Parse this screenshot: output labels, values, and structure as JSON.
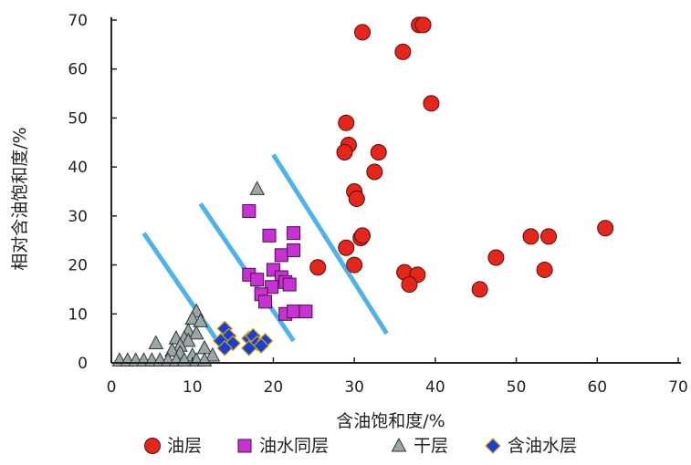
{
  "chart_data": {
    "type": "scatter",
    "xlabel": "含油饱和度/%",
    "ylabel": "相对含油饱和度/%",
    "xlim": [
      0,
      70
    ],
    "ylim": [
      0,
      70
    ],
    "xticks": [
      "0",
      "10",
      "20",
      "30",
      "40",
      "50",
      "60",
      "70"
    ],
    "yticks": [
      "0",
      "10",
      "20",
      "30",
      "40",
      "50",
      "60",
      "70"
    ],
    "grid": false,
    "legend_position": "bottom",
    "series": [
      {
        "name": "油层",
        "marker": "circle",
        "color": "#e5261c",
        "points": [
          [
            38.0,
            69.0
          ],
          [
            38.5,
            69.0
          ],
          [
            31.0,
            67.5
          ],
          [
            36.0,
            63.5
          ],
          [
            39.5,
            53.0
          ],
          [
            29.0,
            49.0
          ],
          [
            29.3,
            44.5
          ],
          [
            33.0,
            43.0
          ],
          [
            28.8,
            43.0
          ],
          [
            32.5,
            39.0
          ],
          [
            30.0,
            35.0
          ],
          [
            30.3,
            33.5
          ],
          [
            30.8,
            25.5
          ],
          [
            31.0,
            26.0
          ],
          [
            29.0,
            23.5
          ],
          [
            25.5,
            19.5
          ],
          [
            30.0,
            20.0
          ],
          [
            36.2,
            18.5
          ],
          [
            37.8,
            18.0
          ],
          [
            36.8,
            16.0
          ],
          [
            45.5,
            15.0
          ],
          [
            47.5,
            21.5
          ],
          [
            51.8,
            25.8
          ],
          [
            54.0,
            25.8
          ],
          [
            53.5,
            19.0
          ],
          [
            61.0,
            27.5
          ]
        ]
      },
      {
        "name": "油水同层",
        "marker": "square",
        "color": "#c832d2",
        "points": [
          [
            17.0,
            31.0
          ],
          [
            22.5,
            26.5
          ],
          [
            19.5,
            26.0
          ],
          [
            21.0,
            22.0
          ],
          [
            22.5,
            23.0
          ],
          [
            17.0,
            18.0
          ],
          [
            18.0,
            17.0
          ],
          [
            20.0,
            19.0
          ],
          [
            21.0,
            17.5
          ],
          [
            21.5,
            16.5
          ],
          [
            22.0,
            16.0
          ],
          [
            19.8,
            15.5
          ],
          [
            18.5,
            14.0
          ],
          [
            19.0,
            12.5
          ],
          [
            21.5,
            10.0
          ],
          [
            22.5,
            10.5
          ],
          [
            24.0,
            10.5
          ]
        ]
      },
      {
        "name": "干层",
        "marker": "triangle",
        "color": "#9aa7a8",
        "points": [
          [
            18.0,
            35.5
          ],
          [
            10.5,
            10.5
          ],
          [
            10.0,
            9.0
          ],
          [
            11.0,
            8.5
          ],
          [
            9.5,
            6.5
          ],
          [
            10.5,
            6.0
          ],
          [
            9.0,
            5.0
          ],
          [
            8.0,
            5.0
          ],
          [
            9.5,
            4.5
          ],
          [
            5.5,
            4.0
          ],
          [
            8.5,
            3.5
          ],
          [
            11.5,
            3.0
          ],
          [
            7.5,
            2.5
          ],
          [
            8.5,
            2.0
          ],
          [
            10.0,
            1.5
          ],
          [
            12.5,
            1.5
          ],
          [
            1.0,
            0.5
          ],
          [
            2.0,
            0.5
          ],
          [
            3.0,
            0.5
          ],
          [
            4.0,
            0.5
          ],
          [
            5.0,
            0.5
          ],
          [
            6.0,
            0.5
          ],
          [
            7.0,
            0.5
          ],
          [
            8.0,
            0.5
          ],
          [
            9.0,
            0.5
          ],
          [
            10.5,
            0.5
          ],
          [
            11.5,
            0.5
          ]
        ]
      },
      {
        "name": "含油水层",
        "marker": "diamond",
        "color": "#1d3fd0",
        "points": [
          [
            14.0,
            7.0
          ],
          [
            14.5,
            5.5
          ],
          [
            13.5,
            4.5
          ],
          [
            15.0,
            4.0
          ],
          [
            14.0,
            3.0
          ],
          [
            17.0,
            5.0
          ],
          [
            17.5,
            5.5
          ],
          [
            18.0,
            4.0
          ],
          [
            19.0,
            4.5
          ],
          [
            18.5,
            3.5
          ],
          [
            17.0,
            3.0
          ]
        ]
      }
    ],
    "annotations": {
      "type": "boundary-lines",
      "color": "#4fb3e6",
      "lines": [
        [
          [
            4.0,
            26.5
          ],
          [
            13.5,
            3.5
          ]
        ],
        [
          [
            11.0,
            32.5
          ],
          [
            22.5,
            4.5
          ]
        ],
        [
          [
            20.0,
            42.5
          ],
          [
            34.0,
            6.0
          ]
        ]
      ]
    }
  }
}
